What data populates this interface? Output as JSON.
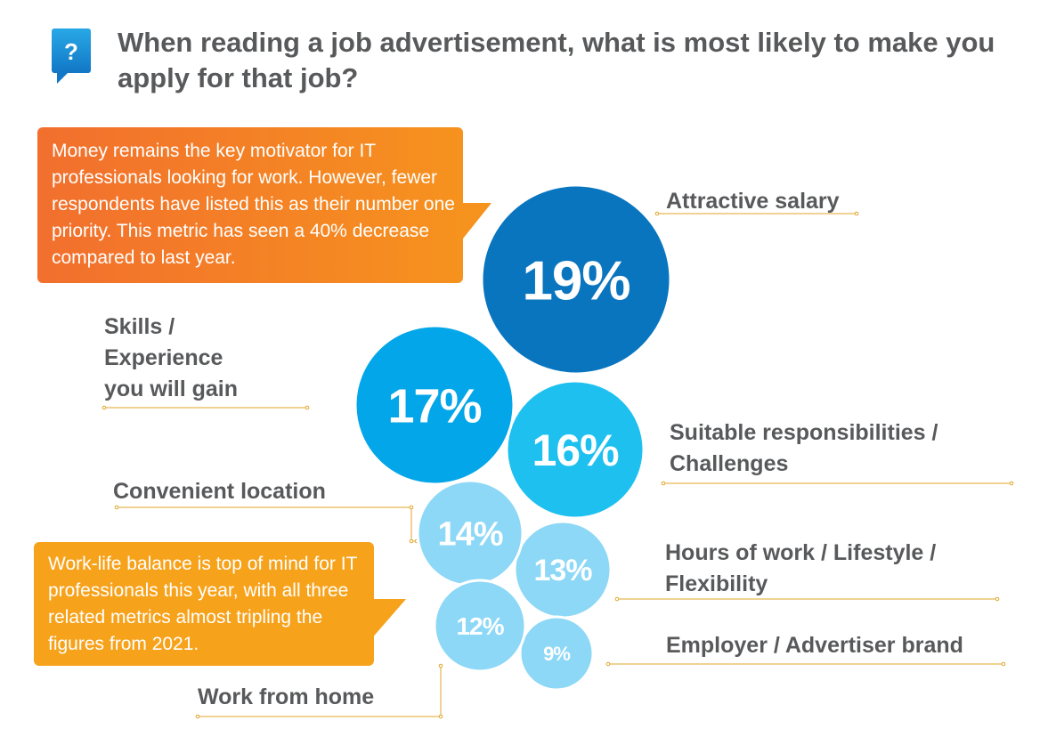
{
  "title": "When reading a job advertisement, what is most likely to make you apply for that job?",
  "icon": "question-speech-bubble-icon",
  "callouts": {
    "salary_note": "Money remains the key motivator for IT professionals looking for work. However, fewer respondents have listed this as their number one priority. This metric has seen a 40% decrease compared to last year.",
    "wellbeing_note": "Work-life balance is top of mind for IT professionals this year, with all three related metrics almost tripling the figures from 2021."
  },
  "colors": {
    "title": "#58595b",
    "label": "#58595b",
    "leader_line": "#e0a52a",
    "icon": "#1f8fd6",
    "callout_salary_start": "#f26f2e",
    "callout_salary_end": "#f6921e",
    "callout_wellbeing": "#f7a21b"
  },
  "chart_data": {
    "type": "bubble",
    "categories": [
      "Attractive salary",
      "Skills / Experience you will gain",
      "Suitable responsibilities / Challenges",
      "Convenient location",
      "Hours of work / Lifestyle / Flexibility",
      "Work from home",
      "Employer / Advertiser brand"
    ],
    "values": [
      19,
      17,
      16,
      14,
      13,
      12,
      9
    ],
    "value_labels": [
      "19%",
      "17%",
      "16%",
      "14%",
      "13%",
      "12%",
      "9%"
    ],
    "label_lines": [
      [
        "Attractive salary"
      ],
      [
        "Skills /",
        "Experience",
        "you will gain"
      ],
      [
        "Suitable responsibilities /",
        "Challenges"
      ],
      [
        "Convenient location"
      ],
      [
        "Hours of work / Lifestyle /",
        "Flexibility"
      ],
      [
        "Work from home"
      ],
      [
        "Employer / Advertiser brand"
      ]
    ],
    "bubble_colors": [
      "#0a75bf",
      "#03a6e8",
      "#1dc0ef",
      "#8dd8f6",
      "#8dd8f6",
      "#8dd8f6",
      "#8dd8f6"
    ]
  }
}
